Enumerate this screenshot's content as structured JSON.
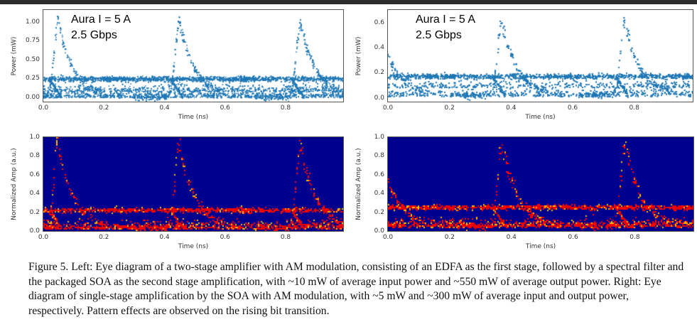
{
  "figure": {
    "caption": "Figure 5. Left: Eye diagram of a two-stage amplifier with AM modulation, consisting of an EDFA as the first stage, followed by a spectral filter and the packaged SOA as the second stage amplification, with ~10 mW of average input power and ~550 mW of average output power.  Right: Eye diagram of single-stage amplification by the SOA with AM modulation, with ~5 mW and ~300 mW of average input and output power, respectively.  Pattern effects are observed on the rising bit transition."
  },
  "chart_data": [
    {
      "type": "scatter",
      "panel": "top-left",
      "annotation": [
        "Aura I = 5 A",
        "2.5 Gbps"
      ],
      "xlabel": "Time (ns)",
      "ylabel": "Power (mW)",
      "xlim": [
        0,
        0.99
      ],
      "ylim": [
        -0.06,
        1.16
      ],
      "xticks": [
        "0.0",
        "0.2",
        "0.4",
        "0.6",
        "0.8"
      ],
      "yticks": [
        "0.00",
        "0.25",
        "0.50",
        "0.75",
        "1.00"
      ],
      "color": "#1f77b4",
      "peaks_ns": [
        0.05,
        0.45,
        0.85
      ],
      "peak_level": 1.08,
      "levels": [
        0.0,
        0.08,
        0.24
      ]
    },
    {
      "type": "scatter",
      "panel": "top-right",
      "annotation": [
        "Aura I = 5 A",
        "2.5 Gbps"
      ],
      "xlabel": "Time (ns)",
      "ylabel": "Power (mW)",
      "xlim": [
        0,
        0.99
      ],
      "ylim": [
        -0.03,
        0.7
      ],
      "xticks": [
        "0.0",
        "0.2",
        "0.4",
        "0.6",
        "0.8"
      ],
      "yticks": [
        "0.0",
        "0.2",
        "0.4",
        "0.6"
      ],
      "color": "#1f77b4",
      "peaks_ns": [
        -0.03,
        0.37,
        0.77
      ],
      "peak_level": 0.65,
      "levels": [
        0.02,
        0.09,
        0.17
      ]
    },
    {
      "type": "heatmap",
      "panel": "bottom-left",
      "xlabel": "Time (ns)",
      "ylabel": "Normalized Amp (a.u.)",
      "xlim": [
        0,
        0.99
      ],
      "ylim": [
        0,
        1
      ],
      "xticks": [
        "0.0",
        "0.2",
        "0.4",
        "0.6",
        "0.8"
      ],
      "yticks": [
        "0.0",
        "0.2",
        "0.4",
        "0.6",
        "0.8",
        "1.0"
      ],
      "colormap": "jet",
      "background": "#00008f",
      "peaks_ns": [
        0.05,
        0.45,
        0.85
      ],
      "levels": [
        0.03,
        0.22
      ]
    },
    {
      "type": "heatmap",
      "panel": "bottom-right",
      "xlabel": "Time (ns)",
      "ylabel": "Normalized Amp (a.u.)",
      "xlim": [
        0,
        0.99
      ],
      "ylim": [
        0,
        1
      ],
      "xticks": [
        "0.0",
        "0.2",
        "0.4",
        "0.6",
        "0.8"
      ],
      "yticks": [
        "0.0",
        "0.2",
        "0.4",
        "0.6",
        "0.8",
        "1.0"
      ],
      "colormap": "jet",
      "background": "#00008f",
      "peaks_ns": [
        -0.03,
        0.37,
        0.77
      ],
      "levels": [
        0.05,
        0.25
      ]
    }
  ]
}
